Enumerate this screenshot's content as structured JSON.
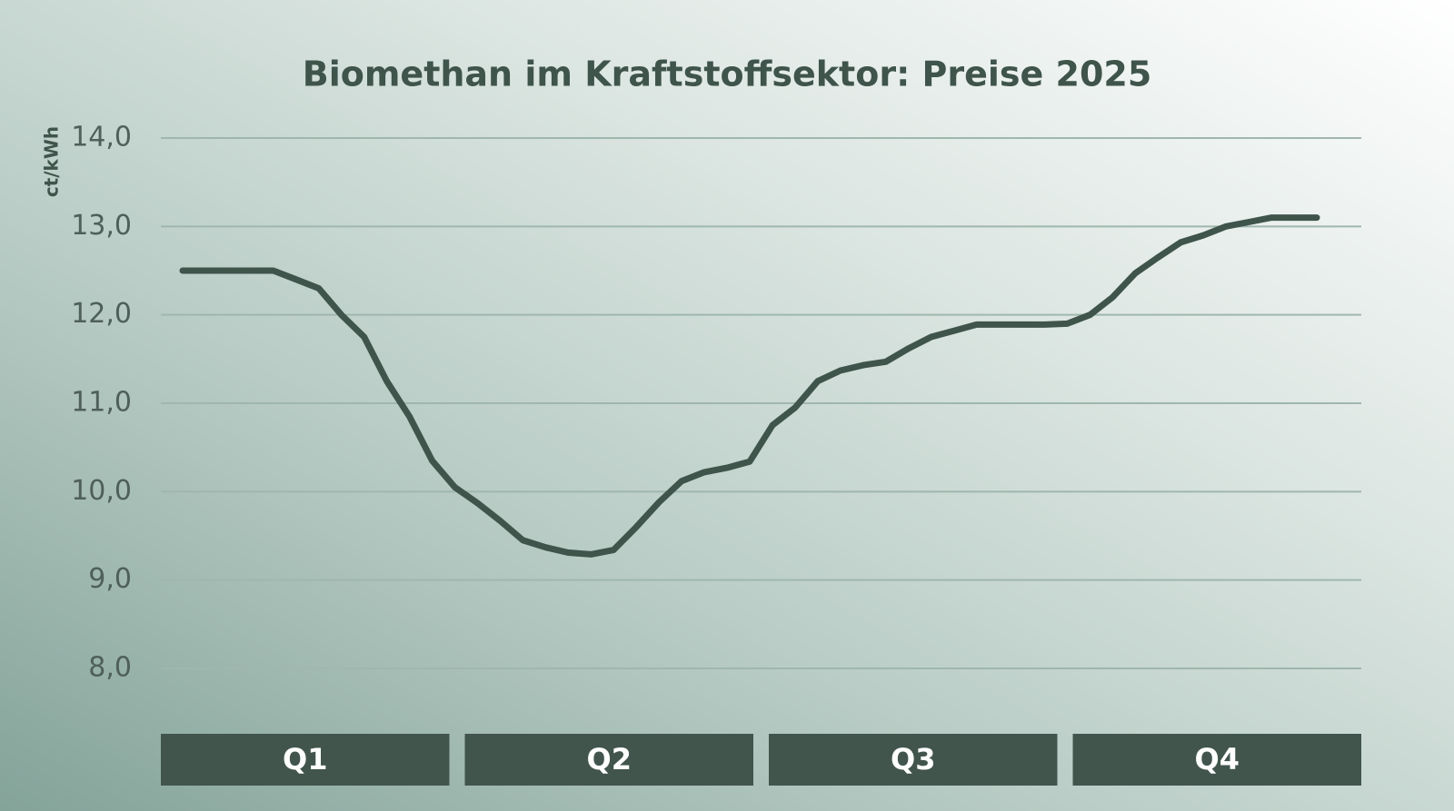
{
  "chart_data": {
    "type": "line",
    "title": "Biomethan im Kraftstoffsektor: Preise 2025",
    "ylabel": "ct/kWh",
    "quarters": [
      "Q1",
      "Q2",
      "Q3",
      "Q4"
    ],
    "ylim": [
      8,
      14
    ],
    "yticks": [
      {
        "value": 8,
        "label": "8,0"
      },
      {
        "value": 9,
        "label": "9,0"
      },
      {
        "value": 10,
        "label": "10,0"
      },
      {
        "value": 11,
        "label": "11,0"
      },
      {
        "value": 12,
        "label": "12,0"
      },
      {
        "value": 13,
        "label": "13,0"
      },
      {
        "value": 14,
        "label": "14,0"
      }
    ],
    "grid": true,
    "series": [
      {
        "color": "#3f544b",
        "values": [
          12.5,
          12.5,
          12.5,
          12.5,
          12.5,
          12.4,
          12.3,
          12.0,
          11.75,
          11.25,
          10.85,
          10.35,
          10.05,
          9.87,
          9.67,
          9.45,
          9.37,
          9.31,
          9.29,
          9.34,
          9.6,
          9.88,
          10.12,
          10.22,
          10.27,
          10.34,
          10.75,
          10.95,
          11.25,
          11.37,
          11.43,
          11.47,
          11.62,
          11.75,
          11.82,
          11.89,
          11.89,
          11.89,
          11.89,
          11.9,
          12.0,
          12.2,
          12.47,
          12.65,
          12.82,
          12.9,
          13.0,
          13.05,
          13.1,
          13.1,
          13.1
        ]
      }
    ]
  }
}
